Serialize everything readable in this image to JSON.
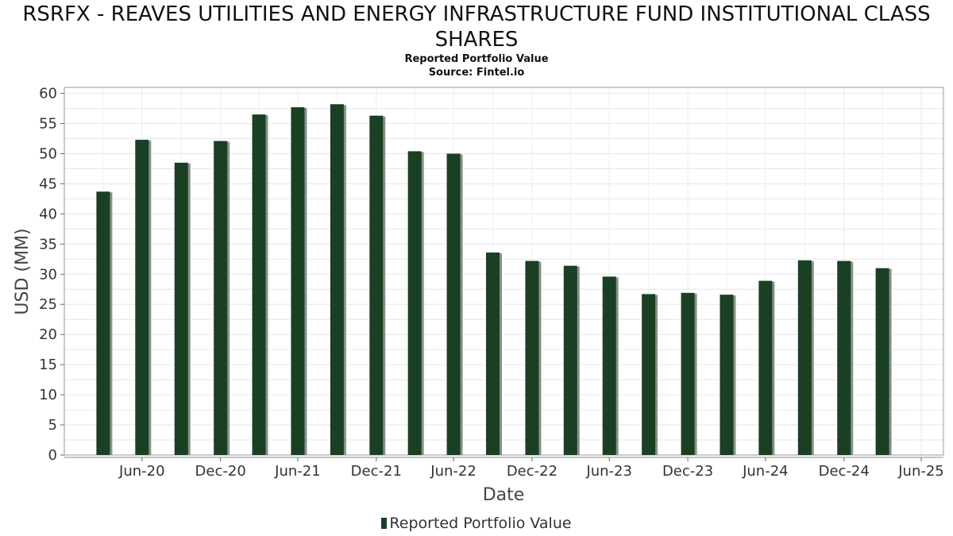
{
  "chart_data": {
    "type": "bar",
    "title": "RSRFX - REAVES UTILITIES AND ENERGY INFRASTRUCTURE FUND INSTITUTIONAL CLASS SHARES",
    "subtitle": "Reported Portfolio Value",
    "source": "Source: Fintel.io",
    "xlabel": "Date",
    "ylabel": "USD (MM)",
    "ylim": [
      0,
      61
    ],
    "yticks": [
      0,
      5,
      10,
      15,
      20,
      25,
      30,
      35,
      40,
      45,
      50,
      55,
      60
    ],
    "xticks": [
      {
        "label": "Jun-20",
        "date": "2020-06-30"
      },
      {
        "label": "Dec-20",
        "date": "2020-12-31"
      },
      {
        "label": "Jun-21",
        "date": "2021-06-30"
      },
      {
        "label": "Dec-21",
        "date": "2021-12-31"
      },
      {
        "label": "Jun-22",
        "date": "2022-06-30"
      },
      {
        "label": "Dec-22",
        "date": "2022-12-31"
      },
      {
        "label": "Jun-23",
        "date": "2023-06-30"
      },
      {
        "label": "Dec-23",
        "date": "2023-12-31"
      },
      {
        "label": "Jun-24",
        "date": "2024-06-30"
      },
      {
        "label": "Dec-24",
        "date": "2024-12-31"
      },
      {
        "label": "Jun-25",
        "date": "2025-06-30"
      }
    ],
    "xlim": [
      "2019-12-31",
      "2025-06-30"
    ],
    "series": [
      {
        "name": "Reported Portfolio Value",
        "color": "#1a4024",
        "x": [
          "2020-03-31",
          "2020-06-30",
          "2020-09-30",
          "2020-12-31",
          "2021-03-31",
          "2021-06-30",
          "2021-09-30",
          "2021-12-31",
          "2022-03-31",
          "2022-06-30",
          "2022-09-30",
          "2022-12-31",
          "2023-03-31",
          "2023-06-30",
          "2023-09-30",
          "2023-12-31",
          "2024-03-31",
          "2024-06-30",
          "2024-09-30",
          "2024-12-31",
          "2025-03-31"
        ],
        "values": [
          43.7,
          52.3,
          48.5,
          52.1,
          56.5,
          57.7,
          58.2,
          56.3,
          50.4,
          50.0,
          33.6,
          32.2,
          31.4,
          29.6,
          26.7,
          26.9,
          26.6,
          28.9,
          32.3,
          32.2,
          31.0
        ]
      }
    ],
    "grid": true,
    "legend": "bottom-center"
  }
}
